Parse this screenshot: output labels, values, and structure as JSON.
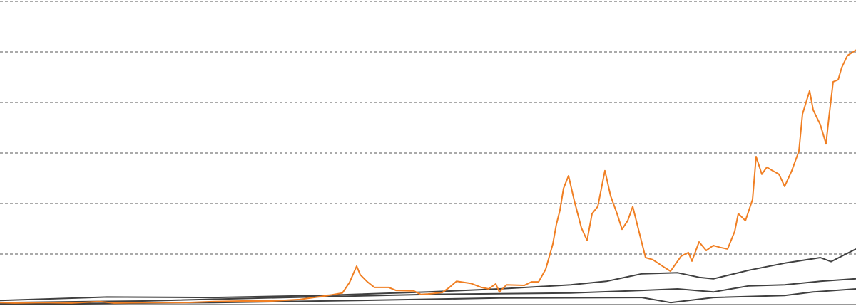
{
  "chart_data": {
    "type": "line",
    "xlim": [
      0,
      1200
    ],
    "ylim": [
      0,
      6
    ],
    "yticks": [
      0,
      1,
      2,
      3,
      4,
      5,
      6
    ],
    "grid": true,
    "series": [
      {
        "color": "#404040",
        "x": [
          0,
          150,
          300,
          450,
          600,
          700,
          800,
          850,
          900,
          950,
          980,
          1000,
          1050,
          1100,
          1150,
          1165,
          1200
        ],
        "values": [
          0.08,
          0.15,
          0.14,
          0.18,
          0.25,
          0.31,
          0.39,
          0.46,
          0.61,
          0.63,
          0.54,
          0.51,
          0.68,
          0.82,
          0.93,
          0.85,
          1.1
        ]
      },
      {
        "color": "#404040",
        "x": [
          0,
          200,
          400,
          600,
          800,
          900,
          950,
          1000,
          1050,
          1100,
          1150,
          1200
        ],
        "values": [
          0.04,
          0.07,
          0.14,
          0.2,
          0.23,
          0.28,
          0.31,
          0.25,
          0.37,
          0.39,
          0.46,
          0.51
        ]
      },
      {
        "color": "#404040",
        "x": [
          0,
          300,
          500,
          700,
          900,
          940,
          1000,
          1100,
          1140,
          1200
        ],
        "values": [
          0.01,
          0.04,
          0.08,
          0.13,
          0.14,
          0.04,
          0.14,
          0.18,
          0.25,
          0.31
        ]
      },
      {
        "color": "#f07f23",
        "x": [
          0,
          20,
          60,
          100,
          140,
          160,
          200,
          260,
          300,
          340,
          380,
          420,
          460,
          480,
          490,
          500,
          505,
          515,
          525,
          545,
          555,
          575,
          580,
          590,
          600,
          620,
          630,
          640,
          660,
          675,
          685,
          695,
          700,
          710,
          735,
          745,
          755,
          765,
          775,
          780,
          785,
          790,
          797,
          805,
          815,
          823,
          830,
          838,
          848,
          856,
          865,
          872,
          880,
          887,
          895,
          905,
          915,
          930,
          940,
          955,
          965,
          970,
          980,
          990,
          1000,
          1010,
          1020,
          1030,
          1035,
          1045,
          1055,
          1060,
          1068,
          1075,
          1083,
          1092,
          1100,
          1110,
          1120,
          1125,
          1135,
          1140,
          1150,
          1158,
          1162,
          1168,
          1175,
          1180,
          1188,
          1195,
          1200
        ],
        "values": [
          0.04,
          0.03,
          0.04,
          0.03,
          0.06,
          0.03,
          0.04,
          0.04,
          0.06,
          0.07,
          0.07,
          0.1,
          0.18,
          0.23,
          0.44,
          0.76,
          0.59,
          0.45,
          0.34,
          0.34,
          0.28,
          0.27,
          0.27,
          0.2,
          0.21,
          0.24,
          0.34,
          0.46,
          0.42,
          0.34,
          0.31,
          0.41,
          0.25,
          0.39,
          0.38,
          0.45,
          0.45,
          0.7,
          1.2,
          1.59,
          1.87,
          2.3,
          2.55,
          2.06,
          1.52,
          1.27,
          1.8,
          1.94,
          2.65,
          2.15,
          1.8,
          1.49,
          1.66,
          1.94,
          1.49,
          0.93,
          0.89,
          0.75,
          0.66,
          0.96,
          1.03,
          0.86,
          1.24,
          1.07,
          1.17,
          1.13,
          1.1,
          1.45,
          1.8,
          1.66,
          2.08,
          2.93,
          2.58,
          2.72,
          2.65,
          2.58,
          2.34,
          2.65,
          3.04,
          3.77,
          4.23,
          3.85,
          3.56,
          3.18,
          3.7,
          4.41,
          4.45,
          4.69,
          4.93,
          4.99,
          5.04
        ]
      }
    ]
  }
}
